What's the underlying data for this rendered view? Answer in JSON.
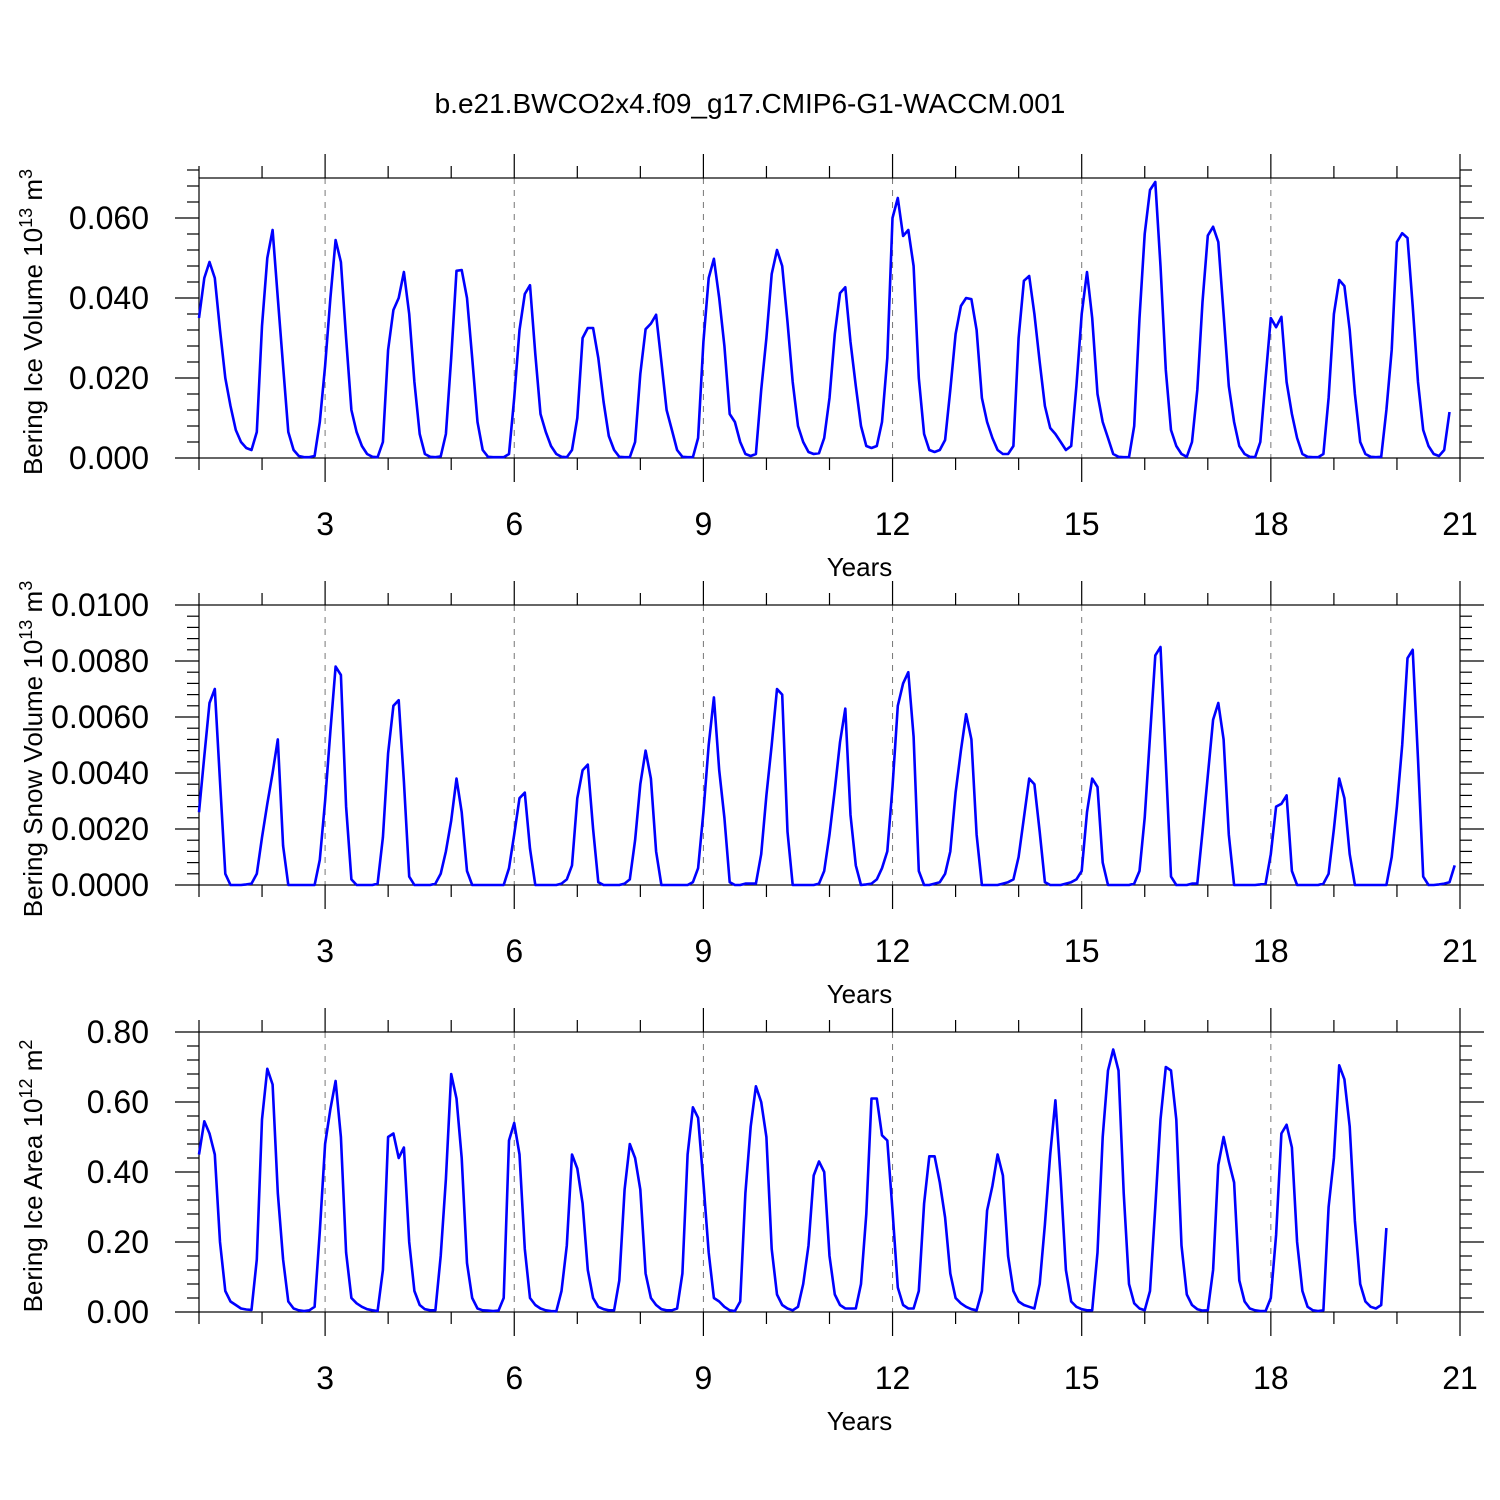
{
  "title": "b.e21.BWCO2x4.f09_g17.CMIP6-G1-WACCM.001",
  "colors": {
    "series": "#0000ff",
    "grid": "#777777",
    "axis": "#000000"
  },
  "chart_data": [
    {
      "type": "line",
      "xlabel": "Years",
      "ylabel_main": "Bering Ice Volume 10",
      "ylabel_exp": "13",
      "ylabel_unit": " m",
      "ylabel_unit_exp": "3",
      "xlim": [
        1,
        21
      ],
      "ylim": [
        0,
        0.07
      ],
      "x_ticks": [
        3,
        6,
        9,
        12,
        15,
        18,
        21
      ],
      "x_tick_labels": [
        "3",
        "6",
        "9",
        "12",
        "15",
        "18",
        "21"
      ],
      "y_ticks": [
        0,
        0.02,
        0.04,
        0.06
      ],
      "y_tick_labels": [
        "0.000",
        "0.020",
        "0.040",
        "0.060"
      ],
      "y_minor_step": 0.004,
      "grid": "dashed vertical at major x ticks",
      "series": [
        {
          "start_year": 1.0,
          "step_years": 0.0833333,
          "values": [
            0.035,
            0.045,
            0.049,
            0.045,
            0.032,
            0.02,
            0.013,
            0.007,
            0.004,
            0.0025,
            0.002,
            0.0065,
            0.033,
            0.05,
            0.057,
            0.04,
            0.023,
            0.0065,
            0.002,
            0.0005,
            0.0002,
            0.0002,
            0.0005,
            0.009,
            0.023,
            0.04,
            0.0545,
            0.049,
            0.03,
            0.012,
            0.0065,
            0.003,
            0.001,
            0.0003,
            0.0002,
            0.004,
            0.027,
            0.037,
            0.04,
            0.0465,
            0.036,
            0.019,
            0.006,
            0.001,
            0.0003,
            0.0002,
            0.0004,
            0.006,
            0.025,
            0.0468,
            0.047,
            0.04,
            0.025,
            0.009,
            0.002,
            0.0003,
            0.0002,
            0.0002,
            0.0002,
            0.001,
            0.015,
            0.032,
            0.041,
            0.0432,
            0.026,
            0.011,
            0.0065,
            0.003,
            0.001,
            0.0003,
            0.0002,
            0.002,
            0.01,
            0.03,
            0.0325,
            0.0325,
            0.025,
            0.014,
            0.0055,
            0.002,
            0.0003,
            0.0002,
            0.0002,
            0.004,
            0.021,
            0.0322,
            0.0336,
            0.0358,
            0.024,
            0.012,
            0.007,
            0.002,
            0.0003,
            0.0002,
            0.0002,
            0.005,
            0.029,
            0.045,
            0.0498,
            0.04,
            0.028,
            0.011,
            0.009,
            0.004,
            0.001,
            0.0005,
            0.001,
            0.017,
            0.03,
            0.046,
            0.052,
            0.048,
            0.034,
            0.019,
            0.008,
            0.004,
            0.0015,
            0.001,
            0.0012,
            0.005,
            0.015,
            0.031,
            0.0412,
            0.0427,
            0.029,
            0.018,
            0.008,
            0.003,
            0.0025,
            0.003,
            0.009,
            0.025,
            0.06,
            0.065,
            0.0555,
            0.057,
            0.048,
            0.02,
            0.006,
            0.002,
            0.0015,
            0.002,
            0.0045,
            0.017,
            0.031,
            0.038,
            0.04,
            0.0397,
            0.032,
            0.015,
            0.009,
            0.005,
            0.002,
            0.001,
            0.001,
            0.003,
            0.03,
            0.0443,
            0.0455,
            0.036,
            0.024,
            0.013,
            0.0075,
            0.006,
            0.004,
            0.002,
            0.003,
            0.018,
            0.036,
            0.0465,
            0.035,
            0.016,
            0.009,
            0.005,
            0.001,
            0.0003,
            0.0002,
            0.0002,
            0.008,
            0.035,
            0.056,
            0.067,
            0.069,
            0.048,
            0.022,
            0.007,
            0.003,
            0.001,
            0.0003,
            0.004,
            0.017,
            0.039,
            0.0556,
            0.0578,
            0.054,
            0.036,
            0.018,
            0.009,
            0.003,
            0.001,
            0.0003,
            0.0002,
            0.004,
            0.02,
            0.035,
            0.0327,
            0.0353,
            0.019,
            0.011,
            0.005,
            0.001,
            0.0003,
            0.0002,
            0.0002,
            0.001,
            0.015,
            0.036,
            0.0445,
            0.043,
            0.032,
            0.016,
            0.004,
            0.001,
            0.0003,
            0.0002,
            0.0003,
            0.012,
            0.027,
            0.054,
            0.0562,
            0.055,
            0.038,
            0.019,
            0.007,
            0.003,
            0.001,
            0.0005,
            0.002,
            0.0115
          ]
        }
      ]
    },
    {
      "type": "line",
      "xlabel": "Years",
      "ylabel_main": "Bering Snow Volume 10",
      "ylabel_exp": "13",
      "ylabel_unit": " m",
      "ylabel_unit_exp": "3",
      "xlim": [
        1,
        21
      ],
      "ylim": [
        0,
        0.01
      ],
      "x_ticks": [
        3,
        6,
        9,
        12,
        15,
        18,
        21
      ],
      "x_tick_labels": [
        "3",
        "6",
        "9",
        "12",
        "15",
        "18",
        "21"
      ],
      "y_ticks": [
        0,
        0.002,
        0.004,
        0.006,
        0.008,
        0.01
      ],
      "y_tick_labels": [
        "0.0000",
        "0.0020",
        "0.0040",
        "0.0060",
        "0.0080",
        "0.0100"
      ],
      "y_minor_step": 0.0004,
      "grid": "dashed vertical at major x ticks",
      "series": [
        {
          "start_year": 1.0,
          "step_years": 0.0833333,
          "values": [
            0.0026,
            0.0046,
            0.0065,
            0.007,
            0.0037,
            0.0004,
            0.0,
            0.0,
            0.0,
            2e-05,
            5e-05,
            0.0004,
            0.0017,
            0.0029,
            0.004,
            0.0052,
            0.0014,
            0.0,
            0.0,
            0.0,
            0.0,
            0.0,
            0.0,
            0.0009,
            0.003,
            0.0055,
            0.0078,
            0.0075,
            0.0028,
            0.0002,
            0.0,
            0.0,
            0.0,
            0.0,
            5e-05,
            0.0017,
            0.0047,
            0.0064,
            0.0066,
            0.0037,
            0.0003,
            0.0,
            0.0,
            0.0,
            0.0,
            5e-05,
            0.0004,
            0.0012,
            0.0023,
            0.0038,
            0.0026,
            0.0005,
            0.0,
            0.0,
            0.0,
            0.0,
            0.0,
            0.0,
            0.0,
            0.0006,
            0.0018,
            0.0031,
            0.0033,
            0.0013,
            0.0,
            0.0,
            0.0,
            0.0,
            0.0,
            5e-05,
            0.0002,
            0.0007,
            0.0031,
            0.0041,
            0.0043,
            0.002,
            0.0001,
            0.0,
            0.0,
            0.0,
            0.0,
            5e-05,
            0.0002,
            0.0016,
            0.0036,
            0.0048,
            0.0038,
            0.0012,
            0.0,
            0.0,
            0.0,
            0.0,
            0.0,
            0.0,
            0.0001,
            0.0006,
            0.0026,
            0.005,
            0.0067,
            0.0041,
            0.0024,
            0.0001,
            0.0,
            0.0,
            5e-05,
            5e-05,
            5e-05,
            0.0011,
            0.0032,
            0.005,
            0.007,
            0.0068,
            0.0019,
            0.0,
            0.0,
            0.0,
            0.0,
            0.0,
            5e-05,
            0.0005,
            0.0018,
            0.0034,
            0.0051,
            0.0063,
            0.0025,
            0.0007,
            0.0,
            2e-05,
            5e-05,
            0.0002,
            0.0006,
            0.0012,
            0.0035,
            0.0064,
            0.0072,
            0.0076,
            0.0053,
            0.0005,
            0.0,
            0.0,
            5e-05,
            0.0001,
            0.0004,
            0.0012,
            0.0033,
            0.0048,
            0.0061,
            0.0052,
            0.0018,
            0.0,
            0.0,
            0.0,
            0.0,
            5e-05,
            0.0001,
            0.0002,
            0.001,
            0.0024,
            0.0038,
            0.0036,
            0.0019,
            0.0001,
            0.0,
            0.0,
            0.0,
            5e-05,
            0.0001,
            0.0002,
            0.0005,
            0.0026,
            0.0038,
            0.0035,
            0.0008,
            0.0,
            0.0,
            0.0,
            0.0,
            0.0,
            5e-05,
            0.0005,
            0.0024,
            0.0053,
            0.0082,
            0.0085,
            0.0044,
            0.0003,
            0.0,
            0.0,
            0.0,
            5e-05,
            5e-05,
            0.0019,
            0.0039,
            0.0059,
            0.0065,
            0.0052,
            0.0018,
            0.0,
            0.0,
            0.0,
            0.0,
            0.0,
            2e-05,
            5e-05,
            0.0011,
            0.0028,
            0.0029,
            0.0032,
            0.0005,
            0.0,
            0.0,
            0.0,
            0.0,
            0.0,
            5e-05,
            0.0004,
            0.002,
            0.0038,
            0.0031,
            0.0011,
            0.0,
            0.0,
            0.0,
            0.0,
            0.0,
            0.0,
            0.0,
            0.001,
            0.0028,
            0.005,
            0.0081,
            0.0084,
            0.0045,
            0.0003,
            0.0,
            0.0,
            2e-05,
            5e-05,
            0.0001,
            0.0007
          ]
        }
      ]
    },
    {
      "type": "line",
      "xlabel": "Years",
      "ylabel_main": "Bering Ice Area 10",
      "ylabel_exp": "12",
      "ylabel_unit": " m",
      "ylabel_unit_exp": "2",
      "xlim": [
        1,
        21
      ],
      "ylim": [
        0,
        0.8
      ],
      "x_ticks": [
        3,
        6,
        9,
        12,
        15,
        18,
        21
      ],
      "x_tick_labels": [
        "3",
        "6",
        "9",
        "12",
        "15",
        "18",
        "21"
      ],
      "y_ticks": [
        0,
        0.2,
        0.4,
        0.6,
        0.8
      ],
      "y_tick_labels": [
        "0.00",
        "0.20",
        "0.40",
        "0.60",
        "0.80"
      ],
      "y_minor_step": 0.04,
      "grid": "dashed vertical at major x ticks",
      "series": [
        {
          "start_year": 1.0,
          "step_years": 0.0833333,
          "values": [
            0.45,
            0.545,
            0.51,
            0.45,
            0.2,
            0.06,
            0.03,
            0.02,
            0.01,
            0.007,
            0.006,
            0.15,
            0.55,
            0.695,
            0.65,
            0.34,
            0.15,
            0.03,
            0.01,
            0.005,
            0.003,
            0.005,
            0.015,
            0.23,
            0.48,
            0.58,
            0.66,
            0.5,
            0.17,
            0.04,
            0.025,
            0.015,
            0.008,
            0.005,
            0.003,
            0.12,
            0.5,
            0.51,
            0.44,
            0.47,
            0.2,
            0.06,
            0.02,
            0.008,
            0.005,
            0.005,
            0.16,
            0.38,
            0.68,
            0.61,
            0.44,
            0.14,
            0.04,
            0.01,
            0.005,
            0.004,
            0.003,
            0.004,
            0.04,
            0.49,
            0.54,
            0.45,
            0.18,
            0.04,
            0.02,
            0.01,
            0.005,
            0.003,
            0.002,
            0.06,
            0.19,
            0.45,
            0.41,
            0.31,
            0.12,
            0.04,
            0.015,
            0.008,
            0.005,
            0.005,
            0.09,
            0.35,
            0.48,
            0.44,
            0.35,
            0.11,
            0.04,
            0.02,
            0.008,
            0.005,
            0.005,
            0.01,
            0.11,
            0.45,
            0.585,
            0.555,
            0.37,
            0.17,
            0.04,
            0.03,
            0.015,
            0.005,
            0.003,
            0.03,
            0.34,
            0.53,
            0.645,
            0.6,
            0.5,
            0.18,
            0.05,
            0.02,
            0.01,
            0.005,
            0.015,
            0.08,
            0.19,
            0.39,
            0.43,
            0.4,
            0.16,
            0.05,
            0.02,
            0.01,
            0.01,
            0.01,
            0.08,
            0.28,
            0.61,
            0.61,
            0.505,
            0.49,
            0.29,
            0.07,
            0.02,
            0.01,
            0.01,
            0.06,
            0.31,
            0.445,
            0.445,
            0.37,
            0.27,
            0.11,
            0.04,
            0.025,
            0.015,
            0.008,
            0.005,
            0.06,
            0.29,
            0.36,
            0.45,
            0.39,
            0.16,
            0.06,
            0.03,
            0.02,
            0.015,
            0.01,
            0.08,
            0.25,
            0.45,
            0.605,
            0.38,
            0.12,
            0.03,
            0.015,
            0.008,
            0.005,
            0.005,
            0.17,
            0.5,
            0.69,
            0.75,
            0.69,
            0.34,
            0.08,
            0.025,
            0.01,
            0.005,
            0.06,
            0.3,
            0.55,
            0.7,
            0.69,
            0.55,
            0.19,
            0.05,
            0.02,
            0.008,
            0.004,
            0.005,
            0.12,
            0.42,
            0.5,
            0.43,
            0.37,
            0.09,
            0.03,
            0.01,
            0.005,
            0.003,
            0.003,
            0.04,
            0.22,
            0.51,
            0.535,
            0.47,
            0.2,
            0.06,
            0.015,
            0.005,
            0.003,
            0.005,
            0.3,
            0.44,
            0.705,
            0.665,
            0.53,
            0.26,
            0.08,
            0.03,
            0.015,
            0.01,
            0.02,
            0.24
          ]
        }
      ]
    }
  ]
}
